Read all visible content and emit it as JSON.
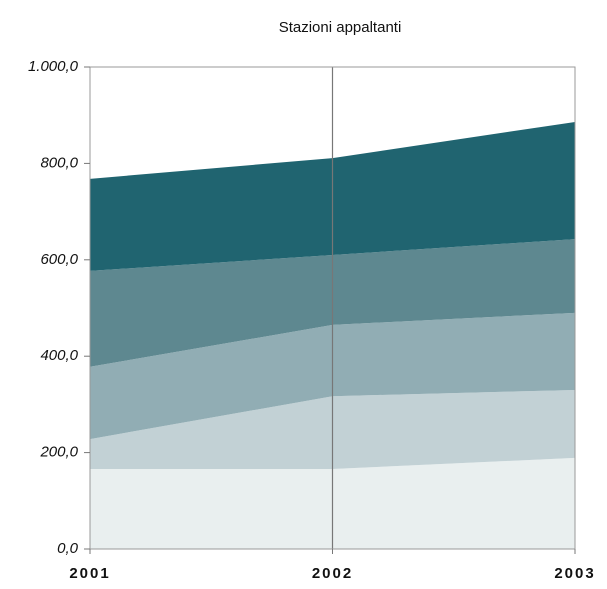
{
  "chart_data": {
    "type": "stacked_area",
    "title": "Stazioni appaltanti",
    "categories": [
      "2001",
      "2002",
      "2003"
    ],
    "series": [
      {
        "color": "#e9efef",
        "values": [
          166,
          166,
          189
        ]
      },
      {
        "color": "#c2d1d5",
        "values": [
          62,
          151,
          141
        ]
      },
      {
        "color": "#91adb4",
        "values": [
          150,
          148,
          160
        ]
      },
      {
        "color": "#5e8890",
        "values": [
          199,
          145,
          153
        ]
      },
      {
        "color": "#206470",
        "values": [
          191,
          201,
          243
        ]
      }
    ],
    "ylim": [
      0,
      1000
    ],
    "yticks": [
      {
        "value": 0,
        "label": "0,0"
      },
      {
        "value": 200,
        "label": "200,0"
      },
      {
        "value": 400,
        "label": "400,0"
      },
      {
        "value": 600,
        "label": "600,0"
      },
      {
        "value": 800,
        "label": "800,0"
      },
      {
        "value": 1000,
        "label": "1.000,0"
      }
    ],
    "grid": false
  }
}
